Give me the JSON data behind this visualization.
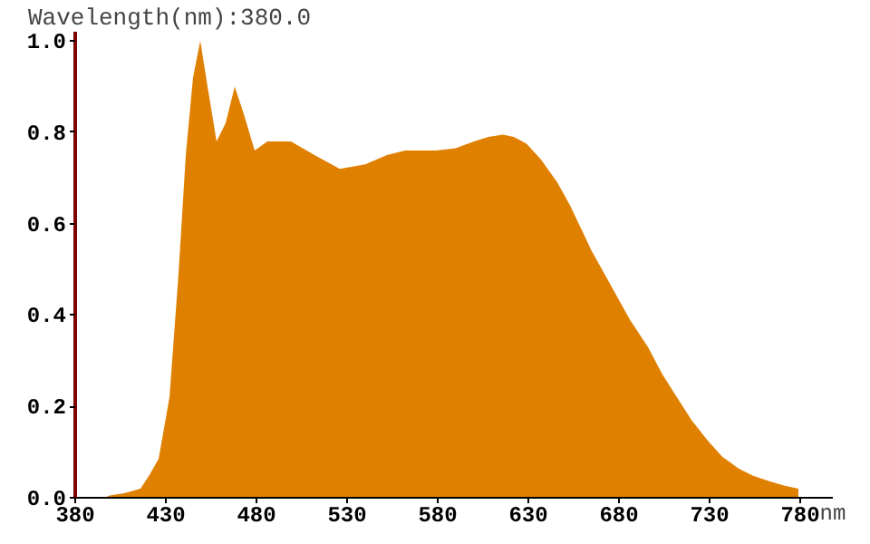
{
  "chart_data": {
    "type": "area",
    "title": "Wavelength(nm):380.0",
    "xlabel": "nm",
    "x": [
      380,
      396,
      399,
      407,
      416,
      421,
      426,
      432,
      437,
      441,
      445,
      449,
      453,
      458,
      463,
      468,
      473,
      479,
      486,
      499,
      512,
      526,
      540,
      552,
      562,
      572,
      579,
      590,
      600,
      608,
      616,
      622,
      629,
      637,
      646,
      653,
      659,
      665,
      672,
      679,
      686,
      696,
      704,
      712,
      720,
      729,
      737,
      746,
      754,
      763,
      771,
      779
    ],
    "series": [
      {
        "color": "#e08000",
        "values": [
          0,
          0,
          0.005,
          0.01,
          0.02,
          0.05,
          0.085,
          0.22,
          0.49,
          0.75,
          0.92,
          1.0,
          0.9,
          0.78,
          0.82,
          0.9,
          0.84,
          0.76,
          0.78,
          0.78,
          0.75,
          0.72,
          0.73,
          0.75,
          0.76,
          0.76,
          0.76,
          0.765,
          0.78,
          0.79,
          0.795,
          0.79,
          0.775,
          0.74,
          0.69,
          0.64,
          0.59,
          0.54,
          0.49,
          0.44,
          0.39,
          0.33,
          0.27,
          0.22,
          0.17,
          0.125,
          0.09,
          0.064,
          0.048,
          0.036,
          0.027,
          0.02
        ]
      }
    ],
    "xlim": [
      380,
      798
    ],
    "ylim": [
      0,
      1.02
    ],
    "xticks": [
      380,
      430,
      480,
      530,
      580,
      630,
      680,
      730,
      780
    ],
    "yticks": [
      {
        "value": 0,
        "label": "0.0"
      },
      {
        "value": 0.2,
        "label": "0.2"
      },
      {
        "value": 0.4,
        "label": "0.4"
      },
      {
        "value": 0.6,
        "label": "0.6"
      },
      {
        "value": 0.8,
        "label": "0.8"
      },
      {
        "value": 1,
        "label": "1.0"
      }
    ],
    "grid": false
  }
}
